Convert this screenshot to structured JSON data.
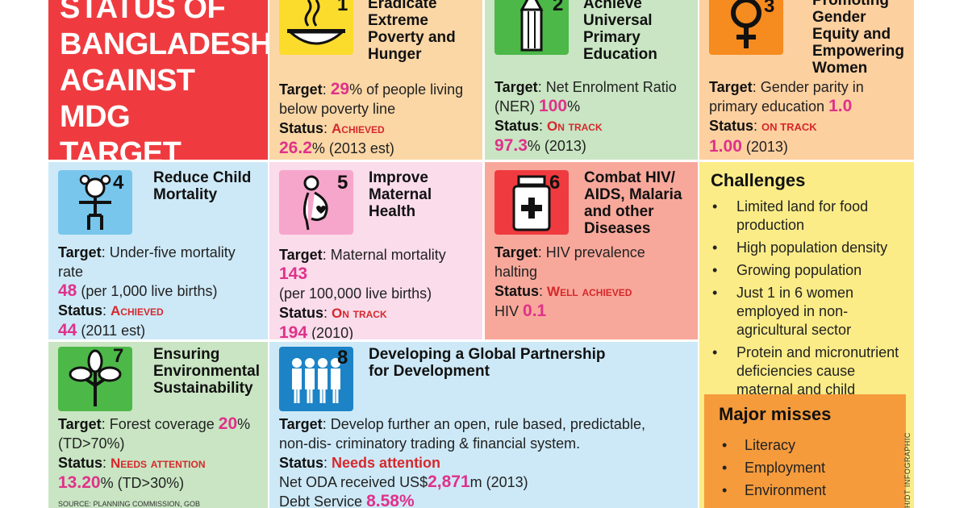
{
  "title": "STATUS OF BANGLADESH AGAINST MDG TARGET",
  "labels": {
    "target": "Target",
    "status": "Status"
  },
  "goals": [
    {
      "number": "1",
      "title": "Eradicate Extreme Poverty and Hunger",
      "icon": "bowl-icon",
      "target_pre": "29",
      "target_rest": "% of people living below poverty line",
      "status": "Achieved",
      "current_value": "26.2",
      "current_rest": "% (2013 est)"
    },
    {
      "number": "2",
      "title": "Achieve Universal Primary Education",
      "icon": "pencil-icon",
      "target_text": "Net Enrolment Ratio (NER)",
      "target_value": "100",
      "target_rest": "%",
      "status": "On track",
      "current_value": "97.3",
      "current_rest": "% (2013)"
    },
    {
      "number": "3",
      "title": "Promoting Gender Equity and Empowering Women",
      "icon": "female-symbol-icon",
      "target_text": "Gender parity in primary education",
      "target_value": "1.0",
      "status": "on track",
      "current_value": "1.00",
      "current_rest": "(2013)"
    },
    {
      "number": "4",
      "title": "Reduce Child Mortality",
      "icon": "child-icon",
      "target_text": "Under-five mortality rate",
      "target_value": "48",
      "target_rest": "(per 1,000 live births)",
      "status": "Achieved",
      "current_value": "44",
      "current_rest": "(2011 est)"
    },
    {
      "number": "5",
      "title": "Improve Maternal Health",
      "icon": "pregnant-woman-icon",
      "target_text": "Maternal mortality",
      "target_value": "143",
      "target_rest": "(per 100,000 live births)",
      "status": "On track",
      "current_value": "194",
      "current_rest": "(2010)"
    },
    {
      "number": "6",
      "title": "Combat HIV/ AIDS, Malaria and other Diseases",
      "icon": "medicine-bottle-icon",
      "target_text": "HIV prevalence halting",
      "status": "Well achieved",
      "current_label": "HIV",
      "current_value": "0.1"
    },
    {
      "number": "7",
      "title": "Ensuring Environmental Sustainability",
      "icon": "tree-icon",
      "target_text": "Forest coverage",
      "target_value": "20",
      "target_rest": "% (TD>70%)",
      "status": "Needs attention",
      "current_value": "13.20",
      "current_rest": "% (TD>30%)"
    },
    {
      "number": "8",
      "title": "Developing a Global Partnership for Development",
      "icon": "people-group-icon",
      "target_text": "Develop further an open, rule based, predictable, non-dis- criminatory trading & financial system.",
      "status": "Needs attention",
      "oda_pre": "Net ODA received US$",
      "oda_value": "2,871",
      "oda_rest": "m (2013)",
      "debt_label": "Debt Service",
      "debt_value": "8.58",
      "debt_rest": "%"
    }
  ],
  "challenges": {
    "heading": "Challenges",
    "items": [
      "Limited land for food production",
      "High population density",
      "Growing population",
      "Just 1 in 6 women employed in non-agricultural sector",
      "Protein and micronutrient deficiencies cause maternal and child malnutrition"
    ]
  },
  "major_misses": {
    "heading": "Major misses",
    "items": [
      "Literacy",
      "Employment",
      "Environment"
    ]
  },
  "credit": "H/DT INFOGRAPHIC",
  "source": "SOURCE: PLANNING COMMISSION, GOB",
  "colors": {
    "title_bg": "#ef3b3f",
    "magenta_value": "#e0318a",
    "status_red": "#d6282c",
    "icon_yellow": "#fbdc2c",
    "icon_green": "#4cb848",
    "icon_orange": "#f68b1f",
    "icon_blue": "#78c6ec",
    "icon_pink": "#f7a6cb",
    "icon_red": "#ef3b3f",
    "icon_blue_dark": "#1c83c6"
  }
}
